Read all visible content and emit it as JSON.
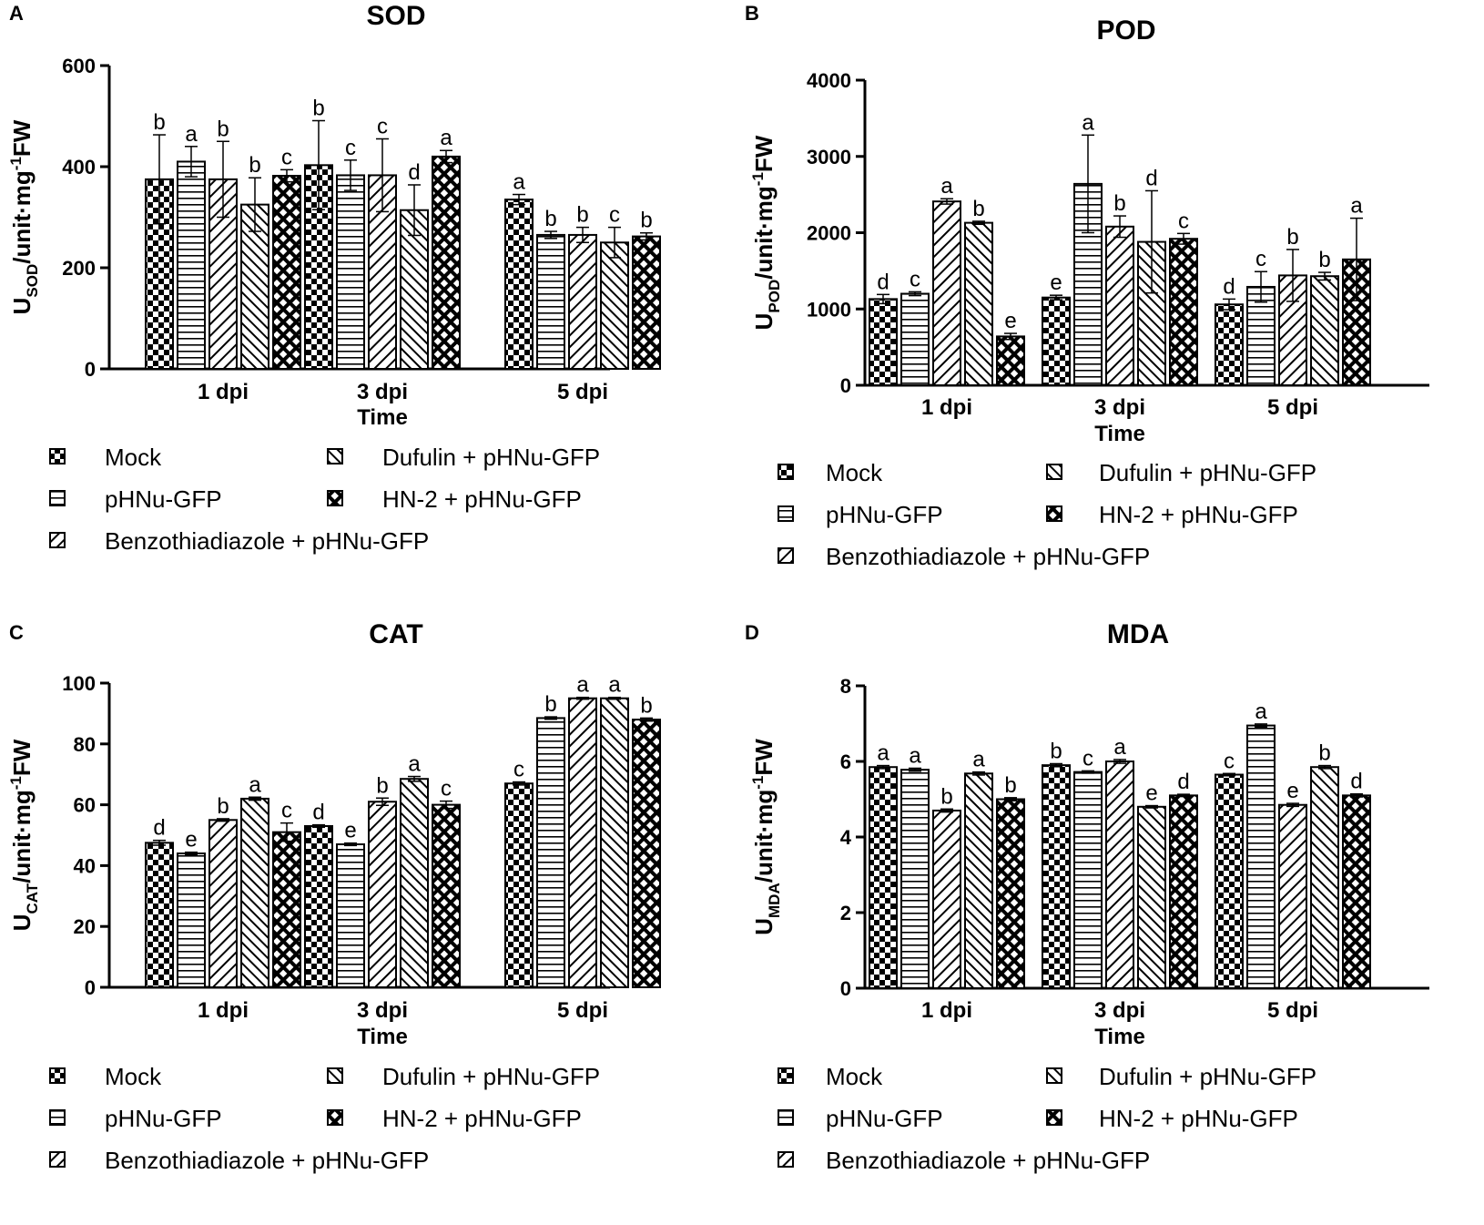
{
  "figure": {
    "description_hidden": false
  },
  "patterns": [
    "checker",
    "hlines",
    "diag-fwd",
    "diag-back",
    "cross"
  ],
  "legend_labels": [
    "Mock",
    "pHNu-GFP",
    "Benzothiadiazole + pHNu-GFP",
    "Dufulin + pHNu-GFP",
    "HN-2 + pHNu-GFP"
  ],
  "chart_data": [
    {
      "panel": "A",
      "type": "bar",
      "title": "SOD",
      "ylabel_main": "U",
      "ylabel_sub": "SOD",
      "ylabel_rest": "/unit·mg",
      "ylabel_sup": "-1",
      "ylabel_end": "FW",
      "xlabel": "Time",
      "categories": [
        "1 dpi",
        "3 dpi",
        "5 dpi"
      ],
      "ylim": [
        0,
        600
      ],
      "yticks": [
        "0",
        "200",
        "400",
        "600"
      ],
      "tick_values": [
        0,
        200,
        400,
        600
      ],
      "series": [
        {
          "name": "Mock",
          "values": [
            375,
            403,
            335
          ],
          "errors": [
            88,
            88,
            10
          ],
          "letters": [
            "b",
            "b",
            "a"
          ]
        },
        {
          "name": "pHNu-GFP",
          "values": [
            410,
            383,
            265
          ],
          "errors": [
            30,
            30,
            7
          ],
          "letters": [
            "a",
            "c",
            "b"
          ]
        },
        {
          "name": "Benzothiadiazole + pHNu-GFP",
          "values": [
            375,
            383,
            265
          ],
          "errors": [
            75,
            72,
            15
          ],
          "letters": [
            "b",
            "c",
            "b"
          ]
        },
        {
          "name": "Dufulin + pHNu-GFP",
          "values": [
            325,
            314,
            250
          ],
          "errors": [
            53,
            50,
            30
          ],
          "letters": [
            "b",
            "d",
            "c"
          ]
        },
        {
          "name": "HN-2 + pHNu-GFP",
          "values": [
            382,
            420,
            262
          ],
          "errors": [
            12,
            12,
            7
          ],
          "letters": [
            "c",
            "a",
            "b"
          ]
        }
      ]
    },
    {
      "panel": "B",
      "type": "bar",
      "title": "POD",
      "ylabel_main": "U",
      "ylabel_sub": "POD",
      "ylabel_rest": "/unit·mg",
      "ylabel_sup": "-1",
      "ylabel_end": "FW",
      "xlabel": "Time",
      "categories": [
        "1 dpi",
        "3 dpi",
        "5 dpi"
      ],
      "ylim": [
        0,
        4000
      ],
      "yticks": [
        "0",
        "1000",
        "2000",
        "3000",
        "4000"
      ],
      "tick_values": [
        0,
        1000,
        2000,
        3000,
        4000
      ],
      "series": [
        {
          "name": "Mock",
          "values": [
            1130,
            1150,
            1060
          ],
          "errors": [
            60,
            30,
            70
          ],
          "letters": [
            "d",
            "e",
            "d"
          ]
        },
        {
          "name": "pHNu-GFP",
          "values": [
            1200,
            2640,
            1290
          ],
          "errors": [
            25,
            640,
            200
          ],
          "letters": [
            "c",
            "a",
            "c"
          ]
        },
        {
          "name": "Benzothiadiazole + pHNu-GFP",
          "values": [
            2410,
            2080,
            1440
          ],
          "errors": [
            35,
            140,
            340
          ],
          "letters": [
            "a",
            "b",
            "b"
          ]
        },
        {
          "name": "Dufulin + pHNu-GFP",
          "values": [
            2130,
            1880,
            1430
          ],
          "errors": [
            20,
            670,
            50
          ],
          "letters": [
            "b",
            "d",
            "b"
          ]
        },
        {
          "name": "HN-2 + pHNu-GFP",
          "values": [
            640,
            1920,
            1650
          ],
          "errors": [
            40,
            70,
            540
          ],
          "letters": [
            "e",
            "c",
            "a"
          ]
        }
      ]
    },
    {
      "panel": "C",
      "type": "bar",
      "title": "CAT",
      "ylabel_main": "U",
      "ylabel_sub": "CAT",
      "ylabel_rest": "/unit·mg",
      "ylabel_sup": "-1",
      "ylabel_end": "FW",
      "xlabel": "Time",
      "categories": [
        "1 dpi",
        "3 dpi",
        "5 dpi"
      ],
      "ylim": [
        0,
        100
      ],
      "yticks": [
        "0",
        "20",
        "40",
        "60",
        "80",
        "100"
      ],
      "tick_values": [
        0,
        20,
        40,
        60,
        80,
        100
      ],
      "series": [
        {
          "name": "Mock",
          "values": [
            47.5,
            53,
            67
          ],
          "errors": [
            0.8,
            0.4,
            0.5
          ],
          "letters": [
            "d",
            "d",
            "c"
          ]
        },
        {
          "name": "pHNu-GFP",
          "values": [
            44,
            47,
            88.5
          ],
          "errors": [
            0.4,
            0.4,
            0.4
          ],
          "letters": [
            "e",
            "e",
            "b"
          ]
        },
        {
          "name": "Benzothiadiazole + pHNu-GFP",
          "values": [
            55,
            61,
            95
          ],
          "errors": [
            0.4,
            1.2,
            0.3
          ],
          "letters": [
            "b",
            "b",
            "a"
          ]
        },
        {
          "name": "Dufulin + pHNu-GFP",
          "values": [
            62,
            68.5,
            95
          ],
          "errors": [
            0.5,
            0.8,
            0.3
          ],
          "letters": [
            "a",
            "a",
            "a"
          ]
        },
        {
          "name": "HN-2 + pHNu-GFP",
          "values": [
            51,
            60,
            88
          ],
          "errors": [
            3,
            1.2,
            0.5
          ],
          "letters": [
            "c",
            "c",
            "b"
          ]
        }
      ]
    },
    {
      "panel": "D",
      "type": "bar",
      "title": "MDA",
      "ylabel_main": "U",
      "ylabel_sub": "MDA",
      "ylabel_rest": "/unit·mg",
      "ylabel_sup": "-1",
      "ylabel_end": "FW",
      "xlabel": "Time",
      "categories": [
        "1 dpi",
        "3 dpi",
        "5 dpi"
      ],
      "ylim": [
        0,
        8
      ],
      "yticks": [
        "0",
        "2",
        "4",
        "6",
        "8"
      ],
      "tick_values": [
        0,
        2,
        4,
        6,
        8
      ],
      "series": [
        {
          "name": "Mock",
          "values": [
            5.85,
            5.9,
            5.65
          ],
          "errors": [
            0.04,
            0.04,
            0.03
          ],
          "letters": [
            "a",
            "b",
            "c"
          ]
        },
        {
          "name": "pHNu-GFP",
          "values": [
            5.78,
            5.72,
            6.95
          ],
          "errors": [
            0.04,
            0.03,
            0.04
          ],
          "letters": [
            "a",
            "c",
            "a"
          ]
        },
        {
          "name": "Benzothiadiazole + pHNu-GFP",
          "values": [
            4.7,
            6.0,
            4.85
          ],
          "errors": [
            0.04,
            0.05,
            0.04
          ],
          "letters": [
            "b",
            "a",
            "e"
          ]
        },
        {
          "name": "Dufulin + pHNu-GFP",
          "values": [
            5.68,
            4.8,
            5.85
          ],
          "errors": [
            0.04,
            0.03,
            0.04
          ],
          "letters": [
            "a",
            "e",
            "b"
          ]
        },
        {
          "name": "HN-2 + pHNu-GFP",
          "values": [
            5.0,
            5.1,
            5.1
          ],
          "errors": [
            0.04,
            0.03,
            0.04
          ],
          "letters": [
            "b",
            "d",
            "d"
          ]
        }
      ]
    }
  ]
}
